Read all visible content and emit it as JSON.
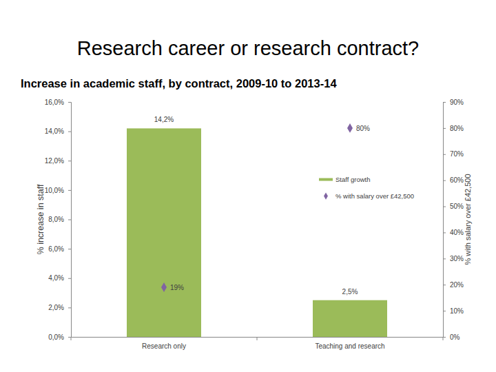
{
  "chart_data": {
    "type": "bar",
    "title": "Research career or research contract?",
    "subtitle": "Increase in academic staff, by contract, 2009-10 to 2013-14",
    "y_label": "% increase in staff",
    "y2_label": "% with salary over £42,500",
    "categories": [
      "Research only",
      "Teaching and research"
    ],
    "series": [
      {
        "name": "Staff growth",
        "type": "bar",
        "color": "#9bbb59",
        "values": [
          14.2,
          2.5
        ],
        "value_labels": [
          "14,2%",
          "2,5%"
        ]
      },
      {
        "name": "% with salary over £42,500",
        "type": "scatter",
        "axis": "y2",
        "marker": "diamond",
        "color": "#8064a2",
        "values": [
          19,
          80
        ],
        "value_labels": [
          "19%",
          "80%"
        ]
      }
    ],
    "ylim": [
      0,
      16
    ],
    "yticks": [
      {
        "value": 0,
        "label": "0,0%"
      },
      {
        "value": 2,
        "label": "2,0%"
      },
      {
        "value": 4,
        "label": "4,0%"
      },
      {
        "value": 6,
        "label": "6,0%"
      },
      {
        "value": 8,
        "label": "8,0%"
      },
      {
        "value": 10,
        "label": "10,0%"
      },
      {
        "value": 12,
        "label": "12,0%"
      },
      {
        "value": 14,
        "label": "14,0%"
      },
      {
        "value": 16,
        "label": "16,0%"
      }
    ],
    "y2lim": [
      0,
      90
    ],
    "y2ticks": [
      {
        "value": 0,
        "label": "0%"
      },
      {
        "value": 10,
        "label": "10%"
      },
      {
        "value": 20,
        "label": "20%"
      },
      {
        "value": 30,
        "label": "30%"
      },
      {
        "value": 40,
        "label": "40%"
      },
      {
        "value": 50,
        "label": "50%"
      },
      {
        "value": 60,
        "label": "60%"
      },
      {
        "value": 70,
        "label": "70%"
      },
      {
        "value": 80,
        "label": "80%"
      },
      {
        "value": 90,
        "label": "90%"
      }
    ],
    "data_labels": true,
    "legend": "right",
    "grid": false
  }
}
